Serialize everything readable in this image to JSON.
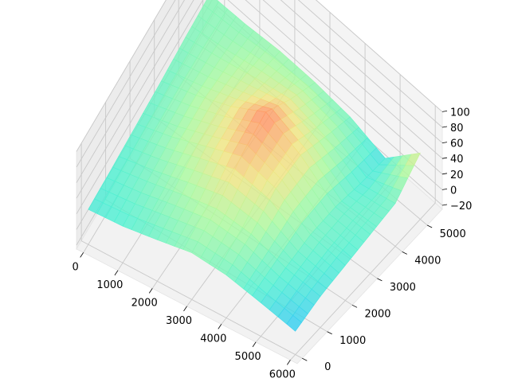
{
  "chart_data": {
    "type": "surface",
    "title": "",
    "xlabel": "",
    "ylabel": "",
    "zlabel": "",
    "colormap": "rainbow",
    "xlim": [
      -200,
      6200
    ],
    "ylim": [
      -200,
      5600
    ],
    "zlim": [
      -25,
      100
    ],
    "grid": true,
    "x_ticks": [
      0,
      1000,
      2000,
      3000,
      4000,
      5000,
      6000
    ],
    "y_ticks": [
      0,
      1000,
      2000,
      3000,
      4000,
      5000
    ],
    "z_ticks": [
      -20,
      0,
      20,
      40,
      60,
      80,
      100
    ],
    "x_tick_labels": [
      "0",
      "1000",
      "2000",
      "3000",
      "4000",
      "5000",
      "6000"
    ],
    "y_tick_labels": [
      "0",
      "1000",
      "2000",
      "3000",
      "4000",
      "5000"
    ],
    "z_tick_labels": [
      "−20",
      "0",
      "20",
      "40",
      "60",
      "80",
      "100"
    ],
    "surface_x": [
      0,
      1000,
      2000,
      3000,
      4000,
      5000,
      6000
    ],
    "surface_y": [
      0,
      1000,
      2000,
      3000,
      4000,
      5000
    ],
    "surface_z": [
      [
        20,
        22,
        25,
        28,
        32,
        35
      ],
      [
        22,
        30,
        38,
        42,
        40,
        35
      ],
      [
        28,
        40,
        55,
        60,
        50,
        38
      ],
      [
        35,
        48,
        72,
        85,
        58,
        36
      ],
      [
        30,
        42,
        60,
        62,
        45,
        30
      ],
      [
        18,
        25,
        30,
        28,
        20,
        15
      ],
      [
        5,
        15,
        20,
        25,
        30,
        60
      ]
    ]
  }
}
